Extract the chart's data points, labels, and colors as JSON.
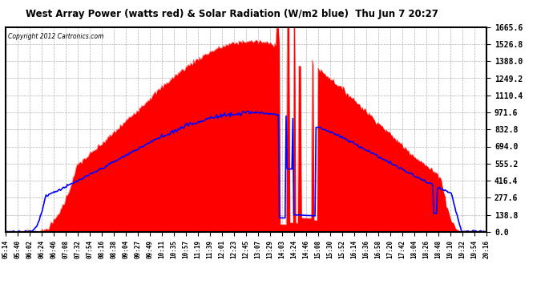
{
  "title": "West Array Power (watts red) & Solar Radiation (W/m2 blue)  Thu Jun 7 20:27",
  "copyright": "Copyright 2012 Cartronics.com",
  "ymax": 1665.6,
  "ymin": 0.0,
  "yticks": [
    0.0,
    138.8,
    277.6,
    416.4,
    555.2,
    694.0,
    832.8,
    971.6,
    1110.4,
    1249.2,
    1388.0,
    1526.8,
    1665.6
  ],
  "bg_color": "#ffffff",
  "plot_bg": "#ffffff",
  "grid_color": "#aaaaaa",
  "red_color": "#ff0000",
  "blue_color": "#0000ff",
  "xtick_labels": [
    "05:14",
    "05:40",
    "06:02",
    "06:24",
    "06:46",
    "07:08",
    "07:32",
    "07:54",
    "08:16",
    "08:38",
    "09:04",
    "09:27",
    "09:49",
    "10:11",
    "10:35",
    "10:57",
    "11:19",
    "11:39",
    "12:01",
    "12:23",
    "12:45",
    "13:07",
    "13:29",
    "14:03",
    "14:24",
    "14:46",
    "15:08",
    "15:30",
    "15:52",
    "16:14",
    "16:36",
    "16:58",
    "17:20",
    "17:42",
    "18:04",
    "18:26",
    "18:48",
    "19:10",
    "19:32",
    "19:54",
    "20:16"
  ],
  "num_points": 500
}
